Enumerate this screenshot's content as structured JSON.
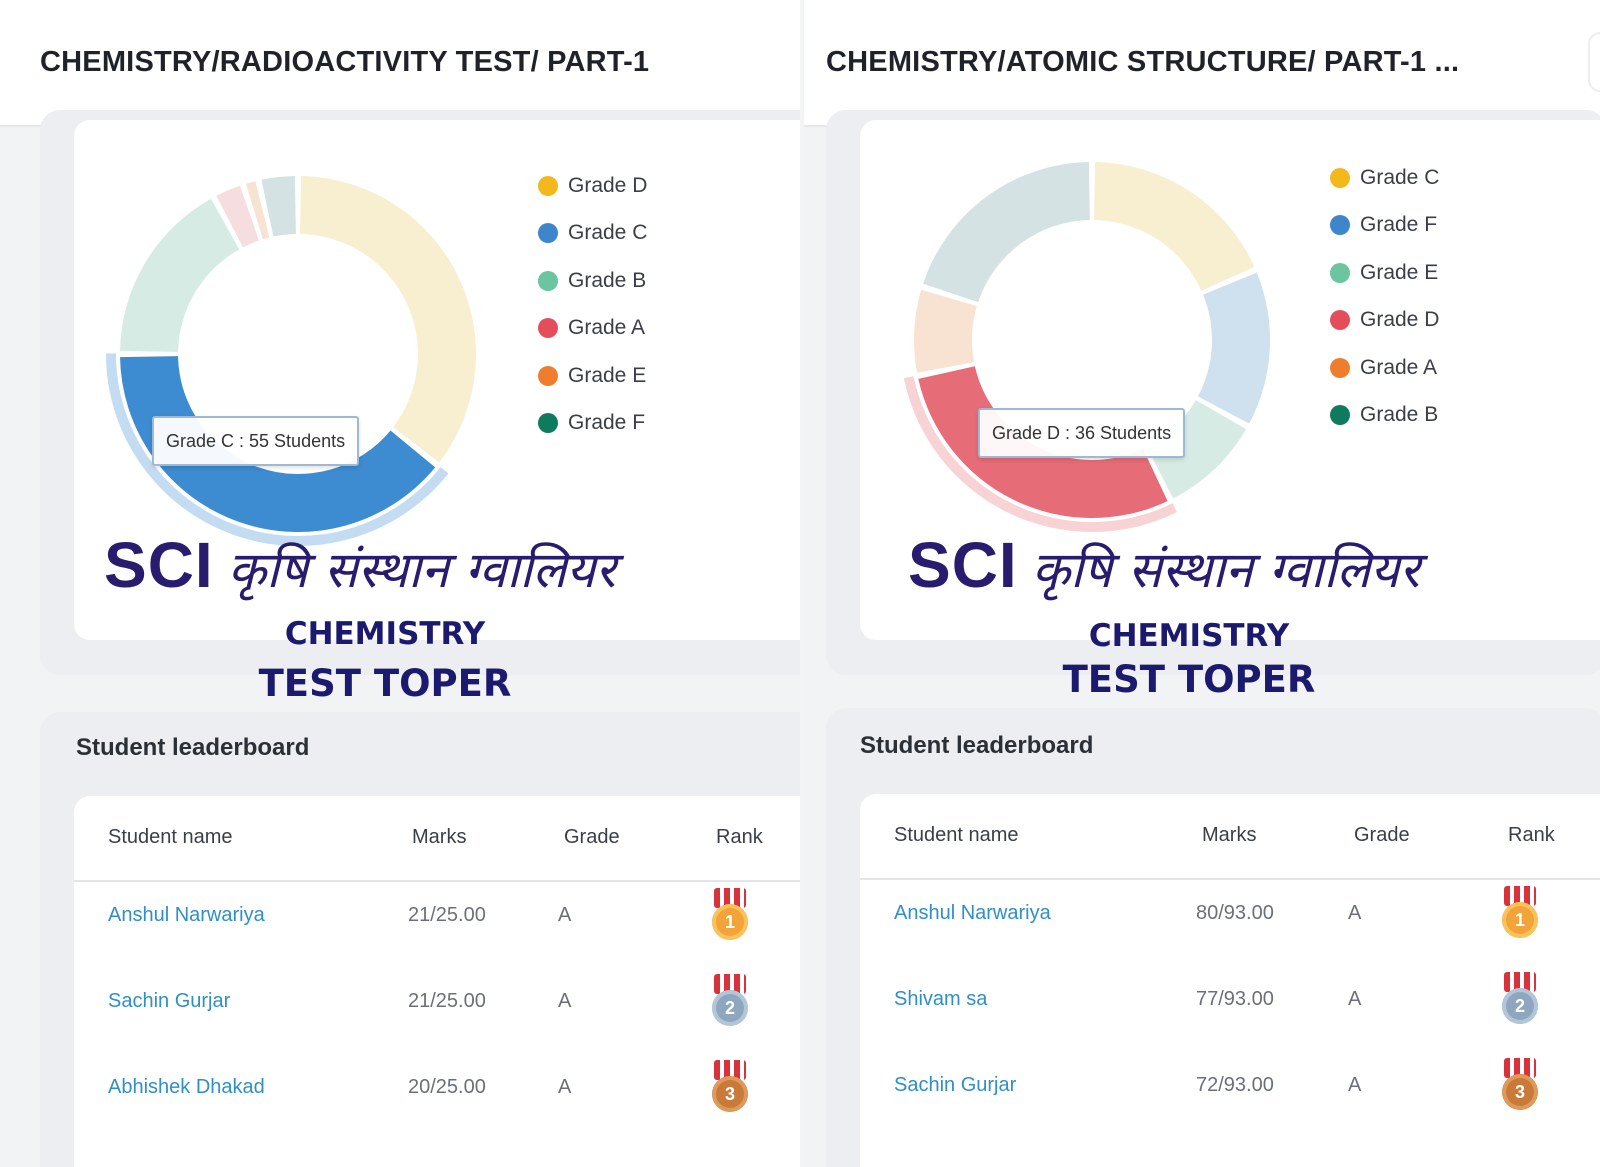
{
  "panels": [
    {
      "header_title": "CHEMISTRY/RADIOACTIVITY TEST/ PART-1",
      "legend": [
        {
          "label": "Grade D",
          "color": "#f2b81c"
        },
        {
          "label": "Grade C",
          "color": "#3d86cb"
        },
        {
          "label": "Grade B",
          "color": "#6bc5a0"
        },
        {
          "label": "Grade A",
          "color": "#e44d5a"
        },
        {
          "label": "Grade E",
          "color": "#ef7d2e"
        },
        {
          "label": "Grade F",
          "color": "#0e7a5e"
        }
      ],
      "tooltip": "Grade C : 55 Students",
      "brand": {
        "sci": "SCI",
        "hindi": "कृषि संस्थान ग्वालियर",
        "line1": "CHEMISTRY",
        "line2": "TEST TOPER"
      },
      "leaderboard": {
        "title": "Student leaderboard",
        "columns": [
          "Student name",
          "Marks",
          "Grade",
          "Rank"
        ],
        "rows": [
          {
            "name": "Anshul Narwariya",
            "marks": "21/25.00",
            "grade": "A",
            "rank": "1"
          },
          {
            "name": "Sachin Gurjar",
            "marks": "21/25.00",
            "grade": "A",
            "rank": "2"
          },
          {
            "name": "Abhishek Dhakad",
            "marks": "20/25.00",
            "grade": "A",
            "rank": "3"
          }
        ]
      },
      "chart_data": {
        "type": "pie",
        "title": "",
        "categories": [
          "Grade D",
          "Grade C",
          "Grade B",
          "Grade A",
          "Grade E",
          "Grade F"
        ],
        "values": [
          50,
          55,
          24,
          4,
          2,
          5
        ],
        "colors": [
          "#f7efcf",
          "#3d8bd0",
          "#d6ebe4",
          "#f6dde0",
          "#f8e3d3",
          "#d4e2e3"
        ],
        "highlighted": "Grade C",
        "donut": true,
        "legend_position": "right"
      }
    },
    {
      "header_title": "CHEMISTRY/ATOMIC STRUCTURE/ PART-1 ...",
      "legend": [
        {
          "label": "Grade C",
          "color": "#f2b81c"
        },
        {
          "label": "Grade F",
          "color": "#3d86cb"
        },
        {
          "label": "Grade E",
          "color": "#6bc5a0"
        },
        {
          "label": "Grade D",
          "color": "#e44d5a"
        },
        {
          "label": "Grade A",
          "color": "#ef7d2e"
        },
        {
          "label": "Grade B",
          "color": "#0e7a5e"
        }
      ],
      "tooltip": "Grade D : 36 Students",
      "brand": {
        "sci": "SCI",
        "hindi": "कृषि संस्थान ग्वालियर",
        "line1": "CHEMISTRY",
        "line2": "TEST TOPER"
      },
      "leaderboard": {
        "title": "Student leaderboard",
        "columns": [
          "Student name",
          "Marks",
          "Grade",
          "Rank"
        ],
        "rows": [
          {
            "name": "Anshul Narwariya",
            "marks": "80/93.00",
            "grade": "A",
            "rank": "1"
          },
          {
            "name": "Shivam sa",
            "marks": "77/93.00",
            "grade": "A",
            "rank": "2"
          },
          {
            "name": "Sachin Gurjar",
            "marks": "72/93.00",
            "grade": "A",
            "rank": "3"
          }
        ]
      },
      "chart_data": {
        "type": "pie",
        "title": "",
        "categories": [
          "Grade C",
          "Grade F",
          "Grade E",
          "Grade D",
          "Grade A",
          "Grade B"
        ],
        "values": [
          23,
          18,
          12,
          36,
          10,
          25
        ],
        "colors": [
          "#f7efcf",
          "#cfe0ef",
          "#d6ebe4",
          "#e66c78",
          "#f8e3d3",
          "#d4e2e3"
        ],
        "highlighted": "Grade D",
        "donut": true,
        "legend_position": "right"
      }
    }
  ]
}
